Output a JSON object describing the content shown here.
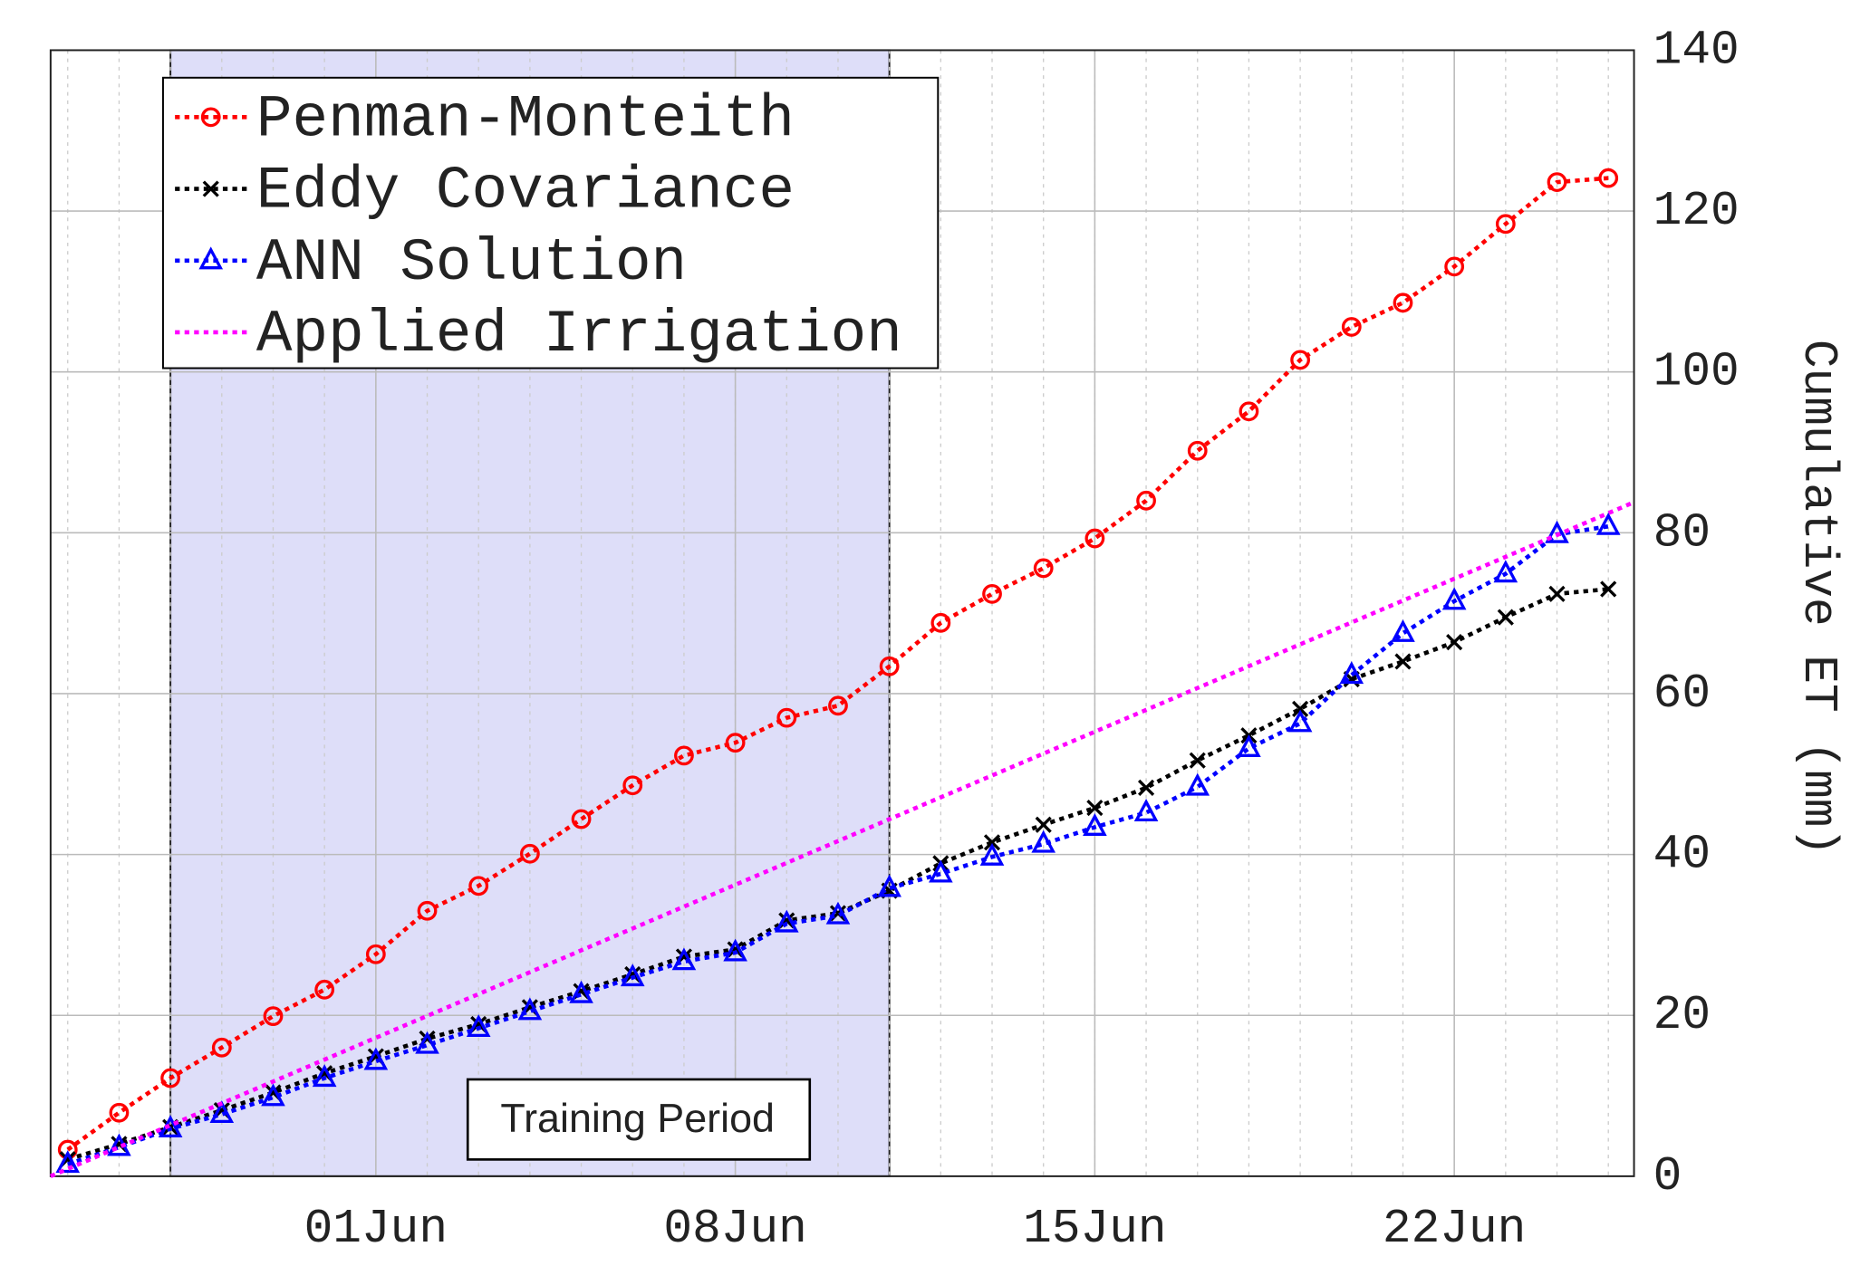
{
  "chart_data": {
    "type": "line",
    "ylabel": "Cumulative ET (mm)",
    "x": [
      "05-26",
      "05-27",
      "05-28",
      "05-29",
      "05-30",
      "05-31",
      "06-01",
      "06-02",
      "06-03",
      "06-04",
      "06-05",
      "06-06",
      "06-07",
      "06-08",
      "06-09",
      "06-10",
      "06-11",
      "06-12",
      "06-13",
      "06-14",
      "06-15",
      "06-16",
      "06-17",
      "06-18",
      "06-19",
      "06-20",
      "06-21",
      "06-22",
      "06-23",
      "06-24",
      "06-25"
    ],
    "xlim": [
      "05-25T16:00",
      "06-25T12:00"
    ],
    "xticks": [
      {
        "value": "06-01",
        "label": "01Jun"
      },
      {
        "value": "06-08",
        "label": "08Jun"
      },
      {
        "value": "06-15",
        "label": "15Jun"
      },
      {
        "value": "06-22",
        "label": "22Jun"
      }
    ],
    "ylim": [
      0,
      140
    ],
    "yticks": [
      0,
      20,
      40,
      60,
      80,
      100,
      120,
      140
    ],
    "y_axis_side": "right",
    "grid": true,
    "minor_grid": true,
    "legend": "upper left",
    "shaded_region": {
      "x": [
        "05-28",
        "06-11"
      ],
      "label": "Training Period",
      "color": "#dedef9"
    },
    "series": [
      {
        "name": "Penman-Monteith",
        "color": "#ff0000",
        "marker": "circle",
        "values": [
          3.3,
          7.9,
          12.2,
          16,
          19.9,
          23.2,
          27.6,
          33,
          36.1,
          40.1,
          44.4,
          48.6,
          52.3,
          53.9,
          57,
          58.5,
          63.4,
          68.8,
          72.4,
          75.6,
          79.3,
          84,
          90.2,
          95.1,
          101.5,
          105.6,
          108.6,
          113.1,
          118.4,
          123.6,
          124.1
        ]
      },
      {
        "name": "Eddy Covariance",
        "color": "#000000",
        "marker": "x",
        "values": [
          2.1,
          4,
          6.1,
          8.2,
          10.4,
          12.8,
          14.9,
          17.1,
          18.9,
          21,
          23,
          25.1,
          27.3,
          28.2,
          31.8,
          32.7,
          35.5,
          38.9,
          41.5,
          43.7,
          45.8,
          48.3,
          51.7,
          54.8,
          58.1,
          61.8,
          64,
          66.4,
          69.5,
          72.4,
          73
        ]
      },
      {
        "name": "ANN Solution",
        "color": "#0000ff",
        "marker": "triangle",
        "values": [
          1.5,
          3.6,
          5.9,
          7.7,
          9.8,
          12.2,
          14.3,
          16.3,
          18.4,
          20.5,
          22.6,
          24.7,
          26.7,
          27.8,
          31.4,
          32.4,
          35.8,
          37.6,
          39.7,
          41.3,
          43.4,
          45.2,
          48.4,
          53.2,
          56.3,
          62.3,
          67.5,
          71.5,
          74.9,
          79.8,
          80.8
        ]
      },
      {
        "name": "Applied Irrigation",
        "color": "#ff00ff",
        "marker": "none",
        "x": [
          "05-25T16:00",
          "06-25T12:00"
        ],
        "values": [
          0,
          83.8
        ]
      }
    ]
  }
}
